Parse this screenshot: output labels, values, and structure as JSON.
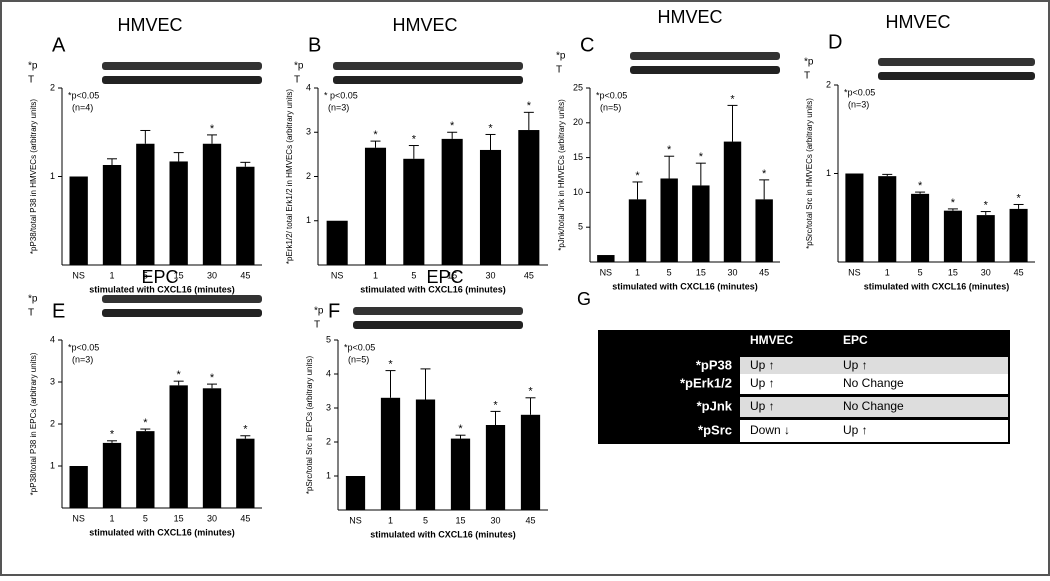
{
  "chart_data": [
    {
      "type": "bar",
      "panel": "A",
      "title": "HMVEC",
      "blot_labels": [
        "*p",
        "T"
      ],
      "annotations": [
        "*p<0.05",
        "(n=4)"
      ],
      "y_label": "*pP38/total P38 in HMVECs (arbitrary units)",
      "x_label": "stimulated with CXCL16 (minutes)",
      "categories": [
        "NS",
        "1",
        "5",
        "15",
        "30",
        "45"
      ],
      "values": [
        1.0,
        1.13,
        1.37,
        1.17,
        1.37,
        1.11
      ],
      "errors": [
        null,
        0.07,
        0.15,
        0.1,
        0.1,
        0.05
      ],
      "markers": [
        null,
        null,
        null,
        null,
        "*",
        null
      ],
      "color": "#000000",
      "ylim": [
        0,
        2
      ],
      "yticks": [
        1,
        2
      ]
    },
    {
      "type": "bar",
      "panel": "B",
      "title": "HMVEC",
      "blot_labels": [
        "*p",
        "T"
      ],
      "annotations": [
        "* p<0.05",
        "(n=3)"
      ],
      "y_label": "*pErk1/2/ total Erk1/2 in HMVECs (arbitrary units)",
      "x_label": "stimulated with CXCL16 (minutes)",
      "categories": [
        "NS",
        "1",
        "5",
        "15",
        "30",
        "45"
      ],
      "values": [
        1.0,
        2.65,
        2.4,
        2.85,
        2.6,
        3.05
      ],
      "errors": [
        null,
        0.15,
        0.3,
        0.15,
        0.35,
        0.4
      ],
      "markers": [
        null,
        "*",
        "*",
        "*",
        "*",
        "*"
      ],
      "color": "#000000",
      "ylim": [
        0,
        4
      ],
      "yticks": [
        1,
        2,
        3,
        4
      ]
    },
    {
      "type": "bar",
      "panel": "C",
      "title": "HMVEC",
      "blot_labels": [
        "*p",
        "T"
      ],
      "annotations": [
        "*p<0.05",
        "(n=5)"
      ],
      "y_label": "*pJnk/total Jnk in HMVECs (arbitrary units)",
      "x_label": "stimulated with CXCL16 (minutes)",
      "categories": [
        "NS",
        "1",
        "5",
        "15",
        "30",
        "45"
      ],
      "values": [
        1.0,
        9.0,
        12.0,
        11.0,
        17.3,
        9.0
      ],
      "errors": [
        null,
        2.5,
        3.2,
        3.2,
        5.2,
        2.8
      ],
      "markers": [
        null,
        "*",
        "*",
        "*",
        "*",
        "*"
      ],
      "color": "#000000",
      "ylim": [
        0,
        25
      ],
      "yticks": [
        5,
        10,
        15,
        20,
        25
      ]
    },
    {
      "type": "bar",
      "panel": "D",
      "title": "HMVEC",
      "blot_labels": [
        "*p",
        "T"
      ],
      "annotations": [
        "*p<0.05",
        "(n=3)"
      ],
      "y_label": "*pSrc/total Src in HMVECs (arbitrary units)",
      "x_label": "stimulated with CXCL16 (minutes)",
      "categories": [
        "NS",
        "1",
        "5",
        "15",
        "30",
        "45"
      ],
      "values": [
        1.0,
        0.97,
        0.77,
        0.58,
        0.53,
        0.6
      ],
      "errors": [
        null,
        0.02,
        0.02,
        0.02,
        0.04,
        0.05
      ],
      "markers": [
        null,
        null,
        "*",
        "*",
        "*",
        "*"
      ],
      "color": "#000000",
      "ylim": [
        0,
        2
      ],
      "yticks": [
        1,
        2
      ]
    },
    {
      "type": "bar",
      "panel": "E",
      "title": "EPC",
      "blot_labels": [
        "*p",
        "T"
      ],
      "annotations": [
        "*p<0.05",
        "(n=3)"
      ],
      "y_label": "*pP38/total P38 in EPCs (arbitrary units)",
      "x_label": "stimulated with CXCL16 (minutes)",
      "categories": [
        "NS",
        "1",
        "5",
        "15",
        "30",
        "45"
      ],
      "values": [
        1.0,
        1.55,
        1.83,
        2.92,
        2.85,
        1.65
      ],
      "errors": [
        null,
        0.05,
        0.05,
        0.1,
        0.1,
        0.07
      ],
      "markers": [
        null,
        "*",
        "*",
        "*",
        "*",
        "*"
      ],
      "color": "#000000",
      "ylim": [
        0,
        4
      ],
      "yticks": [
        1,
        2,
        3,
        4
      ]
    },
    {
      "type": "bar",
      "panel": "F",
      "title": "EPC",
      "blot_labels": [
        "*p",
        "T"
      ],
      "annotations": [
        "*p<0.05",
        "(n=5)"
      ],
      "y_label": "*pSrc/total Src in EPCs (arbitrary units)",
      "x_label": "stimulated with CXCL16 (minutes)",
      "categories": [
        "NS",
        "1",
        "5",
        "15",
        "30",
        "45"
      ],
      "values": [
        1.0,
        3.3,
        3.25,
        2.1,
        2.5,
        2.8
      ],
      "errors": [
        null,
        0.8,
        0.9,
        0.1,
        0.4,
        0.5
      ],
      "markers": [
        null,
        "*",
        null,
        "*",
        "*",
        "*"
      ],
      "color": "#000000",
      "ylim": [
        0,
        5
      ],
      "yticks": [
        1,
        2,
        3,
        4,
        5
      ]
    }
  ],
  "table": {
    "panel": "G",
    "columns": [
      "HMVEC",
      "EPC"
    ],
    "rows": [
      [
        "*pP38",
        "Up ↑",
        "Up ↑"
      ],
      [
        "*pErk1/2",
        "Up ↑",
        "No Change"
      ],
      [
        "*pJnk",
        "Up ↑",
        "No Change"
      ],
      [
        "*pSrc",
        "Down ↓",
        "Up ↑"
      ]
    ]
  }
}
